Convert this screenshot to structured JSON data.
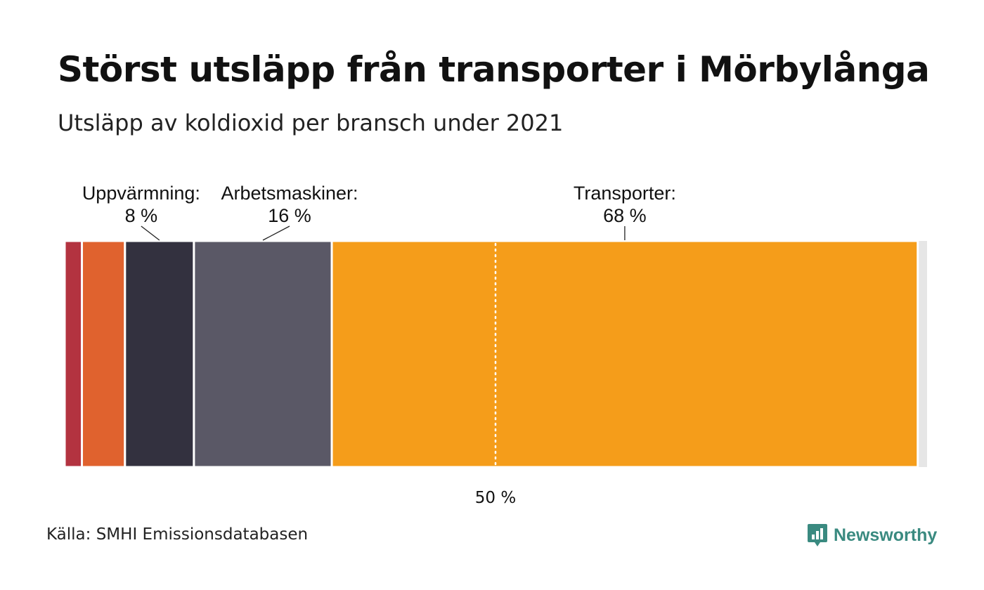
{
  "header": {
    "title": "Störst utsläpp från transporter i Mörbylånga",
    "subtitle": "Utsläpp av koldioxid per bransch under 2021"
  },
  "footer": {
    "source": "Källa: SMHI Emissionsdatabasen",
    "brand": "Newsworthy"
  },
  "colors": {
    "background": "#ffffff",
    "brand": "#3a8a80",
    "separator": "#ffffff",
    "reference_line": "#ffffff"
  },
  "chart_data": {
    "type": "bar",
    "orientation": "horizontal-stacked-100",
    "title": "Störst utsläpp från transporter i Mörbylånga",
    "subtitle": "Utsläpp av koldioxid per bransch under 2021",
    "unit": "%",
    "segments": [
      {
        "label": "",
        "value": 2,
        "color": "#b33340",
        "annotated": false
      },
      {
        "label": "",
        "value": 5,
        "color": "#e0622e",
        "annotated": false
      },
      {
        "label": "Uppvärmning:",
        "value_label": "8 %",
        "value": 8,
        "color": "#33313f",
        "annotated": true
      },
      {
        "label": "Arbetsmaskiner:",
        "value_label": "16 %",
        "value": 16,
        "color": "#5a5866",
        "annotated": true
      },
      {
        "label": "Transporter:",
        "value_label": "68 %",
        "value": 68,
        "color": "#f59d1a",
        "annotated": true
      }
    ],
    "reference_line": {
      "value": 50,
      "label": "50 %",
      "style": "dotted"
    },
    "xlim": [
      0,
      100
    ]
  }
}
